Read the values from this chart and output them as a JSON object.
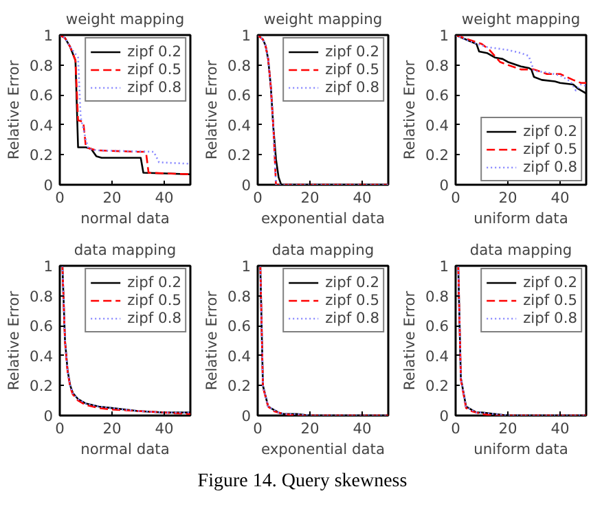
{
  "chart_data": [
    {
      "type": "line",
      "title": "weight mapping",
      "xlabel": "normal data",
      "ylabel": "Relative Error",
      "xlim": [
        0,
        50
      ],
      "ylim": [
        0,
        1
      ],
      "xticks": [
        0,
        20,
        40
      ],
      "yticks": [
        0,
        0.2,
        0.4,
        0.6,
        0.8,
        1
      ],
      "legend": "top right",
      "grid": false,
      "series": [
        {
          "name": "zipf 0.2",
          "color": "#000000",
          "line_style": "solid",
          "x": [
            0,
            2,
            4,
            6,
            7,
            10,
            12,
            14,
            16,
            31,
            32,
            50
          ],
          "values": [
            1,
            0.98,
            0.92,
            0.83,
            0.25,
            0.25,
            0.24,
            0.19,
            0.18,
            0.18,
            0.08,
            0.07
          ]
        },
        {
          "name": "zipf 0.5",
          "color": "#ff0000",
          "line_style": "dashed",
          "x": [
            0,
            2,
            4,
            6,
            7,
            9,
            10,
            12,
            14,
            30,
            33,
            34,
            50
          ],
          "values": [
            1,
            0.98,
            0.92,
            0.83,
            0.43,
            0.42,
            0.25,
            0.24,
            0.23,
            0.22,
            0.22,
            0.08,
            0.07
          ]
        },
        {
          "name": "zipf 0.8",
          "color": "#8888ff",
          "line_style": "dotted",
          "x": [
            0,
            2,
            4,
            7,
            8,
            10,
            11,
            14,
            36,
            38,
            50
          ],
          "values": [
            1,
            0.98,
            0.92,
            0.85,
            0.45,
            0.3,
            0.24,
            0.23,
            0.22,
            0.15,
            0.14
          ]
        }
      ]
    },
    {
      "type": "line",
      "title": "weight mapping",
      "xlabel": "exponential data",
      "ylabel": "Relative Error",
      "xlim": [
        0,
        50
      ],
      "ylim": [
        0,
        1
      ],
      "xticks": [
        0,
        20,
        40
      ],
      "yticks": [
        0,
        0.2,
        0.4,
        0.6,
        0.8,
        1
      ],
      "legend": "top right",
      "grid": false,
      "series": [
        {
          "name": "zipf 0.2",
          "color": "#000000",
          "line_style": "solid",
          "x": [
            0,
            2,
            3,
            4,
            5,
            6,
            7,
            8,
            9,
            50
          ],
          "values": [
            1,
            0.97,
            0.93,
            0.84,
            0.66,
            0.38,
            0.17,
            0.05,
            0,
            0
          ]
        },
        {
          "name": "zipf 0.5",
          "color": "#ff0000",
          "line_style": "dashed",
          "x": [
            0,
            2,
            3,
            4,
            5,
            6,
            7,
            50
          ],
          "values": [
            1,
            0.97,
            0.93,
            0.84,
            0.66,
            0.38,
            0,
            0
          ]
        },
        {
          "name": "zipf 0.8",
          "color": "#8888ff",
          "line_style": "dotted",
          "x": [
            0,
            2,
            3,
            4,
            5,
            6,
            7,
            50
          ],
          "values": [
            1,
            0.97,
            0.93,
            0.84,
            0.66,
            0.38,
            0,
            0
          ]
        }
      ]
    },
    {
      "type": "line",
      "title": "weight mapping",
      "xlabel": "uniform data",
      "ylabel": "Relative Error",
      "xlim": [
        0,
        50
      ],
      "ylim": [
        0,
        1
      ],
      "xticks": [
        0,
        20,
        40
      ],
      "yticks": [
        0,
        0.2,
        0.4,
        0.6,
        0.8,
        1
      ],
      "legend": "bottom right",
      "grid": false,
      "series": [
        {
          "name": "zipf 0.2",
          "color": "#000000",
          "line_style": "solid",
          "x": [
            0,
            8,
            9,
            12,
            15,
            18,
            20,
            25,
            28,
            29,
            30,
            33,
            38,
            40,
            45,
            47,
            50
          ],
          "values": [
            1,
            0.94,
            0.89,
            0.88,
            0.85,
            0.84,
            0.82,
            0.79,
            0.78,
            0.77,
            0.72,
            0.7,
            0.69,
            0.68,
            0.67,
            0.64,
            0.61
          ]
        },
        {
          "name": "zipf 0.5",
          "color": "#ff0000",
          "line_style": "dashed",
          "x": [
            0,
            10,
            13,
            17,
            20,
            25,
            30,
            35,
            40,
            45,
            48,
            50
          ],
          "values": [
            1,
            0.94,
            0.9,
            0.82,
            0.8,
            0.77,
            0.77,
            0.74,
            0.74,
            0.7,
            0.68,
            0.68
          ]
        },
        {
          "name": "zipf 0.8",
          "color": "#8888ff",
          "line_style": "dotted",
          "x": [
            0,
            5,
            12,
            20,
            25,
            28,
            30,
            35,
            40,
            44,
            46,
            48,
            50
          ],
          "values": [
            1,
            0.96,
            0.92,
            0.9,
            0.88,
            0.86,
            0.76,
            0.75,
            0.73,
            0.69,
            0.63,
            0.67,
            0.66
          ]
        }
      ]
    },
    {
      "type": "line",
      "title": "data mapping",
      "xlabel": "normal data",
      "ylabel": "Relative Error",
      "xlim": [
        0,
        50
      ],
      "ylim": [
        0,
        1
      ],
      "xticks": [
        0,
        20,
        40
      ],
      "yticks": [
        0,
        0.2,
        0.4,
        0.6,
        0.8,
        1
      ],
      "legend": "top right",
      "grid": false,
      "series": [
        {
          "name": "zipf 0.2",
          "color": "#000000",
          "line_style": "solid",
          "x": [
            1,
            2,
            3,
            4,
            5,
            7,
            10,
            15,
            20,
            30,
            40,
            50
          ],
          "values": [
            1,
            0.5,
            0.3,
            0.2,
            0.15,
            0.11,
            0.08,
            0.06,
            0.05,
            0.03,
            0.02,
            0.02
          ]
        },
        {
          "name": "zipf 0.5",
          "color": "#ff0000",
          "line_style": "dashed",
          "x": [
            1,
            2,
            3,
            4,
            5,
            7,
            10,
            15,
            20,
            30,
            40,
            50
          ],
          "values": [
            1,
            0.49,
            0.29,
            0.19,
            0.14,
            0.1,
            0.07,
            0.05,
            0.04,
            0.03,
            0.02,
            0.01
          ]
        },
        {
          "name": "zipf 0.8",
          "color": "#8888ff",
          "line_style": "dotted",
          "x": [
            1,
            2,
            3,
            4,
            5,
            7,
            10,
            15,
            20,
            30,
            40,
            50
          ],
          "values": [
            1,
            0.5,
            0.3,
            0.2,
            0.15,
            0.11,
            0.08,
            0.06,
            0.05,
            0.03,
            0.02,
            0.02
          ]
        }
      ]
    },
    {
      "type": "line",
      "title": "data mapping",
      "xlabel": "exponential data",
      "ylabel": "Relative Error",
      "xlim": [
        0,
        50
      ],
      "ylim": [
        0,
        1
      ],
      "xticks": [
        0,
        20,
        40
      ],
      "yticks": [
        0,
        0.2,
        0.4,
        0.6,
        0.8,
        1
      ],
      "legend": "top right",
      "grid": false,
      "series": [
        {
          "name": "zipf 0.2",
          "color": "#000000",
          "line_style": "solid",
          "x": [
            1,
            2,
            4,
            6,
            8,
            10,
            15,
            20,
            50
          ],
          "values": [
            1,
            0.2,
            0.06,
            0.04,
            0.02,
            0.01,
            0.01,
            0,
            0
          ]
        },
        {
          "name": "zipf 0.5",
          "color": "#ff0000",
          "line_style": "dashed",
          "x": [
            1,
            2,
            4,
            6,
            8,
            10,
            15,
            20,
            50
          ],
          "values": [
            1,
            0.19,
            0.06,
            0.03,
            0.02,
            0.01,
            0,
            0,
            0
          ]
        },
        {
          "name": "zipf 0.8",
          "color": "#8888ff",
          "line_style": "dotted",
          "x": [
            1,
            2,
            4,
            6,
            8,
            10,
            15,
            20,
            50
          ],
          "values": [
            1,
            0.2,
            0.06,
            0.04,
            0.02,
            0.01,
            0.01,
            0,
            0
          ]
        }
      ]
    },
    {
      "type": "line",
      "title": "data mapping",
      "xlabel": "uniform data",
      "ylabel": "Relative Error",
      "xlim": [
        0,
        50
      ],
      "ylim": [
        0,
        1
      ],
      "xticks": [
        0,
        20,
        40
      ],
      "yticks": [
        0,
        0.2,
        0.4,
        0.6,
        0.8,
        1
      ],
      "legend": "top right",
      "grid": false,
      "annotations": [
        "Figure 14.   Query skewness"
      ],
      "series": [
        {
          "name": "zipf 0.2",
          "color": "#000000",
          "line_style": "solid",
          "x": [
            1,
            2,
            4,
            6,
            8,
            10,
            15,
            20,
            50
          ],
          "values": [
            1,
            0.25,
            0.06,
            0.04,
            0.02,
            0.02,
            0.01,
            0,
            0
          ]
        },
        {
          "name": "zipf 0.5",
          "color": "#ff0000",
          "line_style": "dashed",
          "x": [
            1,
            2,
            4,
            6,
            8,
            10,
            15,
            20,
            50
          ],
          "values": [
            1,
            0.24,
            0.05,
            0.03,
            0.02,
            0.01,
            0,
            0,
            0
          ]
        },
        {
          "name": "zipf 0.8",
          "color": "#8888ff",
          "line_style": "dotted",
          "x": [
            1,
            2,
            4,
            6,
            8,
            10,
            15,
            20,
            50
          ],
          "values": [
            1,
            0.25,
            0.06,
            0.04,
            0.02,
            0.02,
            0.01,
            0,
            0
          ]
        }
      ]
    }
  ]
}
